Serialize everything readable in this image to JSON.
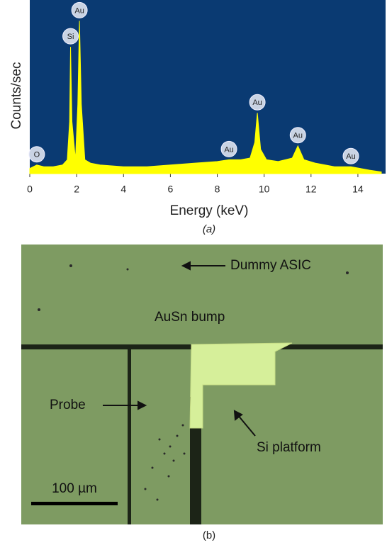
{
  "chart_data": {
    "type": "area",
    "color": "#ffff00",
    "background": "#0a3a72",
    "x_label": "Energy (keV)",
    "y_label": "Counts/sec",
    "caption": "(a)",
    "xlim": [
      0,
      15
    ],
    "ylim": [
      0,
      100
    ],
    "xticks": [
      0,
      2,
      4,
      6,
      8,
      10,
      12,
      14
    ],
    "x": [
      0,
      0.3,
      0.6,
      1.0,
      1.4,
      1.6,
      1.7,
      1.74,
      1.8,
      1.95,
      2.05,
      2.12,
      2.2,
      2.35,
      2.6,
      3,
      4,
      5,
      6,
      7,
      8,
      8.5,
      9,
      9.4,
      9.6,
      9.71,
      9.85,
      10.1,
      10.6,
      11.2,
      11.44,
      11.7,
      12.2,
      13,
      13.7,
      14.5,
      15
    ],
    "values": [
      3,
      5,
      4,
      4,
      5,
      8,
      30,
      73,
      30,
      8,
      40,
      88,
      40,
      8,
      6,
      5,
      4,
      4,
      5,
      6,
      7,
      8,
      8,
      9,
      18,
      35,
      14,
      8,
      7,
      9,
      16,
      8,
      6,
      4,
      4,
      2,
      1
    ],
    "annotations": [
      {
        "text": "O",
        "x": 0.3
      },
      {
        "text": "Si",
        "x": 1.74
      },
      {
        "text": "Au",
        "x": 2.12
      },
      {
        "text": "Au",
        "x": 8.5
      },
      {
        "text": "Au",
        "x": 9.71
      },
      {
        "text": "Au",
        "x": 11.44
      },
      {
        "text": "Au",
        "x": 13.7
      }
    ]
  },
  "image": {
    "labels": [
      "Dummy ASIC",
      "AuSn bump",
      "Probe",
      "Si platform"
    ],
    "scale_bar": "100 µm",
    "caption": "(b)"
  }
}
